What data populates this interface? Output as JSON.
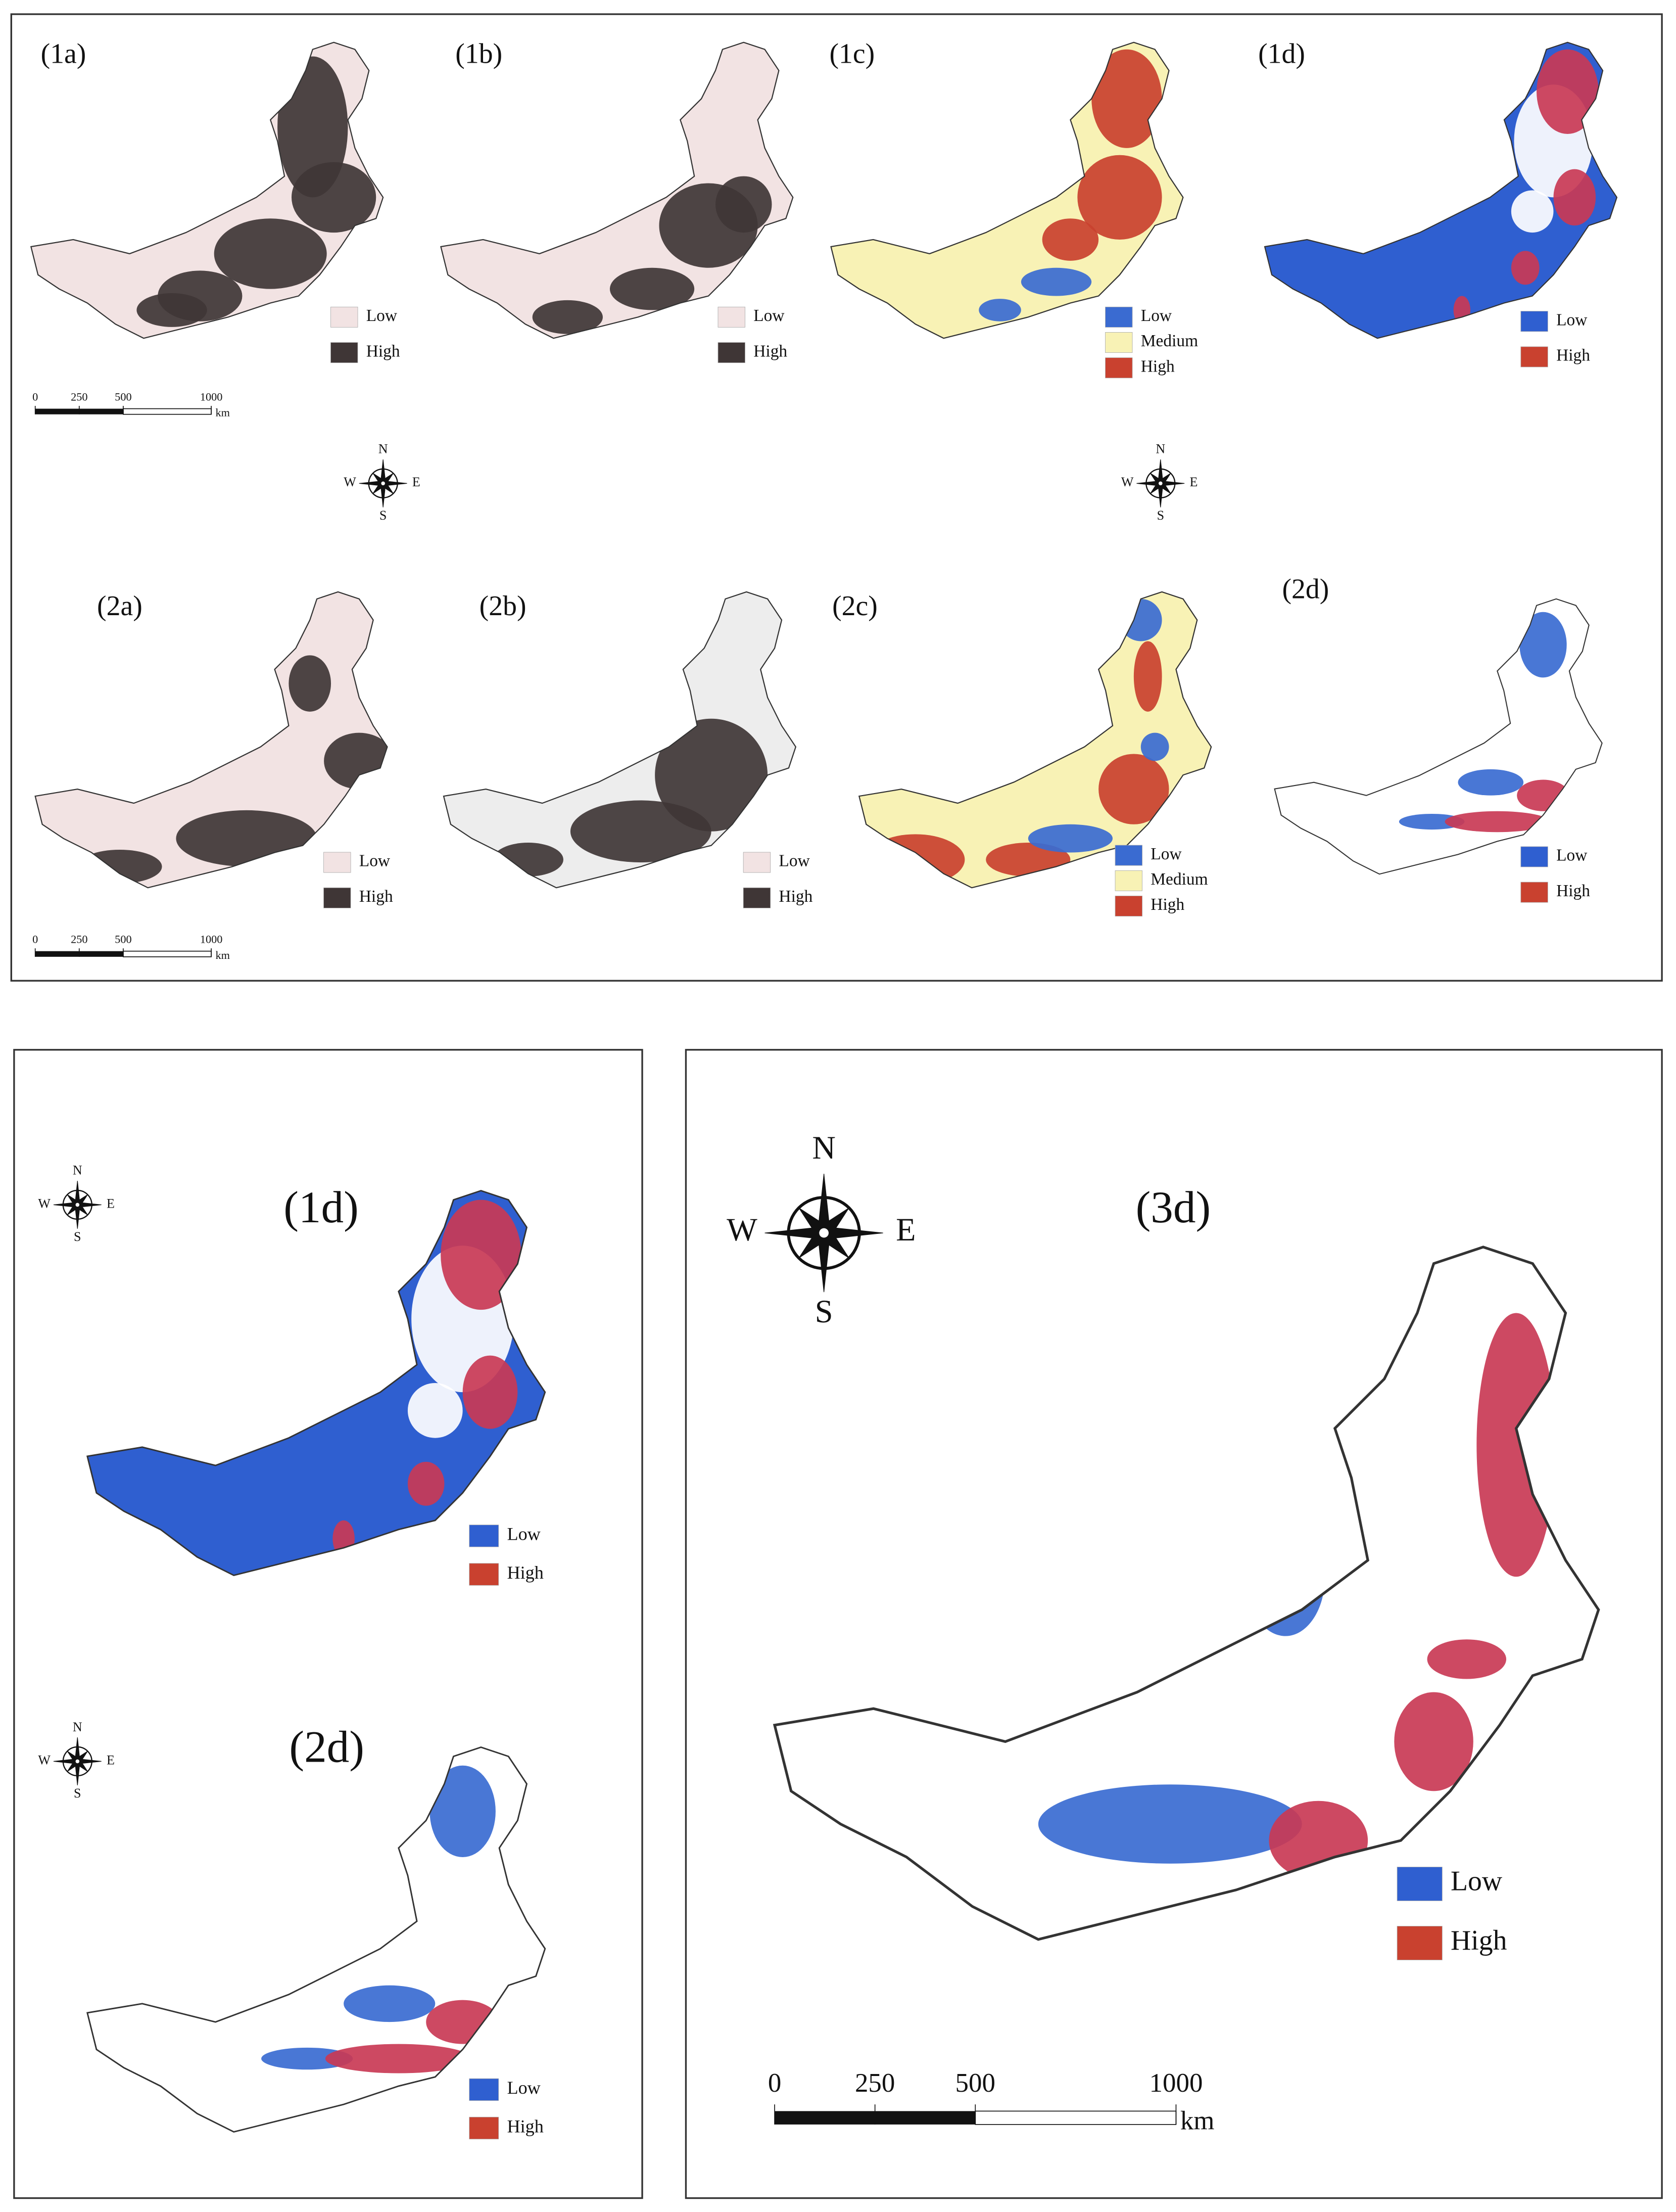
{
  "panels": [
    {
      "label": "(1a)",
      "legend": [
        {
          "label": "Low",
          "color": "#f2e3e3"
        },
        {
          "label": "High",
          "color": "#3f3636"
        }
      ]
    },
    {
      "label": "(1b)",
      "legend": [
        {
          "label": "Low",
          "color": "#f2e3e3"
        },
        {
          "label": "High",
          "color": "#3f3636"
        }
      ]
    },
    {
      "label": "(1c)",
      "legend": [
        {
          "label": "Low",
          "color": "#3a6bd1"
        },
        {
          "label": "Medium",
          "color": "#f8f2b5"
        },
        {
          "label": "High",
          "color": "#c9412f"
        }
      ]
    },
    {
      "label": "(1d)",
      "legend": [
        {
          "label": "Low",
          "color": "#2f5fd0"
        },
        {
          "label": "High",
          "color": "#c9412f"
        }
      ]
    },
    {
      "label": "(2a)",
      "legend": [
        {
          "label": "Low",
          "color": "#f2e3e3"
        },
        {
          "label": "High",
          "color": "#3f3636"
        }
      ]
    },
    {
      "label": "(2b)",
      "legend": [
        {
          "label": "Low",
          "color": "#f2e3e3"
        },
        {
          "label": "High",
          "color": "#3f3636"
        }
      ]
    },
    {
      "label": "(2c)",
      "legend": [
        {
          "label": "Low",
          "color": "#3a6bd1"
        },
        {
          "label": "Medium",
          "color": "#f8f2b5"
        },
        {
          "label": "High",
          "color": "#c9412f"
        }
      ]
    },
    {
      "label": "(2d)",
      "legend": [
        {
          "label": "Low",
          "color": "#2f5fd0"
        },
        {
          "label": "High",
          "color": "#c9412f"
        }
      ]
    },
    {
      "label": "(1d)",
      "legend": [
        {
          "label": "Low",
          "color": "#2f5fd0"
        },
        {
          "label": "High",
          "color": "#c9412f"
        }
      ]
    },
    {
      "label": "(2d)",
      "legend": [
        {
          "label": "Low",
          "color": "#2f5fd0"
        },
        {
          "label": "High",
          "color": "#c9412f"
        }
      ]
    },
    {
      "label": "(3d)",
      "legend": [
        {
          "label": "Low",
          "color": "#2f5fd0"
        },
        {
          "label": "High",
          "color": "#c9412f"
        }
      ]
    }
  ],
  "scale_bars": [
    {
      "ticks": [
        "0",
        "250",
        "500",
        "1000"
      ],
      "unit": "km"
    },
    {
      "ticks": [
        "0",
        "250",
        "500",
        "1000"
      ],
      "unit": "km"
    },
    {
      "ticks": [
        "0",
        "250",
        "500",
        "1000"
      ],
      "unit": "km"
    }
  ],
  "compasses": [
    {
      "n": "N",
      "s": "S",
      "w": "W",
      "e": "E"
    },
    {
      "n": "N",
      "s": "S",
      "w": "W",
      "e": "E"
    },
    {
      "n": "N",
      "s": "S",
      "w": "W",
      "e": "E"
    },
    {
      "n": "N",
      "s": "S",
      "w": "W",
      "e": "E"
    },
    {
      "n": "N",
      "s": "S",
      "w": "W",
      "e": "E"
    }
  ]
}
